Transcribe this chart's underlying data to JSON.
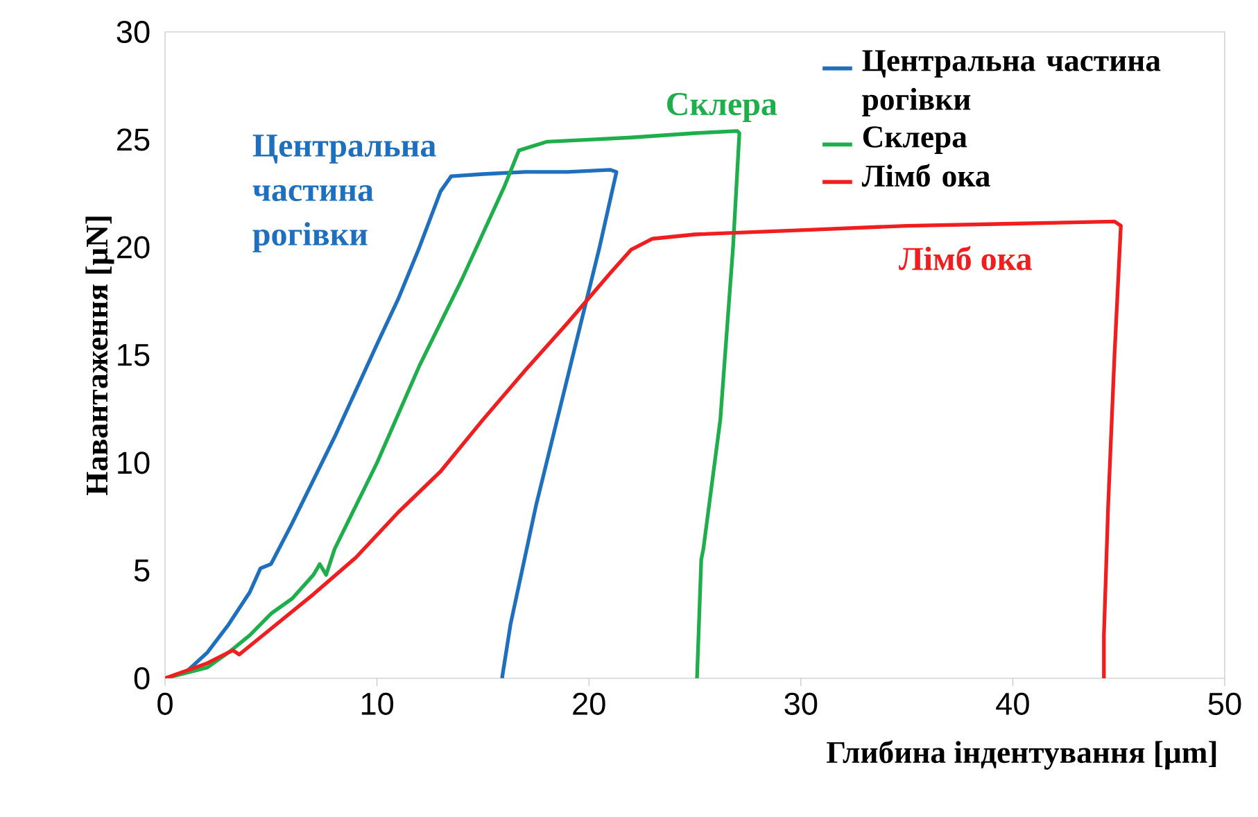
{
  "chart_data": {
    "type": "line",
    "xlabel": "Глибина індентування  [μm]",
    "ylabel": "Навантаження  [μN]",
    "xlim": [
      0,
      50
    ],
    "ylim": [
      0,
      30
    ],
    "xticks": [
      0,
      10,
      20,
      30,
      40,
      50
    ],
    "yticks": [
      0,
      5,
      10,
      15,
      20,
      25,
      30
    ],
    "grid": false,
    "legend": "top right",
    "marker": "none",
    "line_style": "solid",
    "series": [
      {
        "name": "Центральна частина рогівки",
        "color": "#1f6fbf",
        "x": [
          0,
          1,
          2,
          3,
          4,
          4.5,
          5,
          6,
          8,
          10,
          11,
          12,
          13,
          13.5,
          15,
          17,
          19,
          21,
          21.3,
          20.5,
          19,
          17.5,
          16.3,
          15.9
        ],
        "values": [
          0,
          0.3,
          1.2,
          2.5,
          4,
          5.1,
          5.3,
          7.2,
          11.2,
          15.5,
          17.6,
          20,
          22.6,
          23.3,
          23.4,
          23.5,
          23.5,
          23.6,
          23.5,
          20,
          14,
          8,
          2.5,
          0
        ]
      },
      {
        "name": "Склера",
        "color": "#1fae4c",
        "x": [
          0,
          2,
          3,
          4,
          5,
          6,
          7,
          7.3,
          7.6,
          8,
          10,
          12,
          14,
          16,
          16.7,
          18,
          20,
          22,
          25,
          27,
          27.1,
          26.8,
          26.2,
          25.4,
          25.3,
          25.1
        ],
        "values": [
          0,
          0.5,
          1.2,
          2,
          3,
          3.7,
          4.8,
          5.3,
          4.8,
          6,
          10,
          14.5,
          18.5,
          22.8,
          24.5,
          24.9,
          25,
          25.1,
          25.3,
          25.4,
          25.3,
          20,
          12,
          6,
          5.5,
          0
        ]
      },
      {
        "name": "Лімб ока",
        "color": "#f01e1e",
        "x": [
          0,
          2,
          3,
          3.2,
          3.5,
          5,
          7,
          9,
          11,
          13,
          15,
          17,
          19,
          21,
          22,
          23,
          25,
          30,
          35,
          40,
          44.8,
          45.1,
          44.8,
          44.5,
          44.3,
          44.3
        ],
        "values": [
          0,
          0.7,
          1.2,
          1.3,
          1.1,
          2.3,
          3.9,
          5.6,
          7.7,
          9.6,
          12,
          14.3,
          16.5,
          18.8,
          19.9,
          20.4,
          20.6,
          20.8,
          21,
          21.1,
          21.2,
          21,
          15,
          8,
          2,
          0
        ]
      }
    ],
    "annotations": [
      "Центральна частина рогівки",
      "Склера",
      "Лімб ока"
    ]
  }
}
